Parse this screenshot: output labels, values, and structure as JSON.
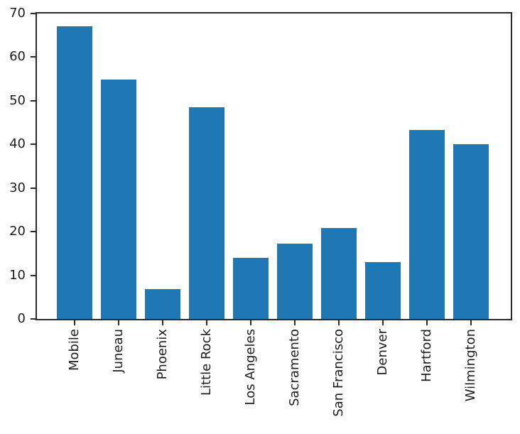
{
  "figure": {
    "background": "#ffffff"
  },
  "chart_data": {
    "type": "bar",
    "title": "",
    "xlabel": "",
    "ylabel": "",
    "categories": [
      "Mobile",
      "Juneau",
      "Phoenix",
      "Little Rock",
      "Los Angeles",
      "Sacramento",
      "San Francisco",
      "Denver",
      "Hartford",
      "Wilmington"
    ],
    "values": [
      67,
      54.8,
      6.9,
      48.5,
      14,
      17.2,
      20.8,
      13,
      43.3,
      40.1
    ],
    "ylim": [
      0,
      70
    ],
    "yticks": [
      0,
      10,
      20,
      30,
      40,
      50,
      60,
      70
    ],
    "bar_color": "#1f77b4",
    "axis_color": "#2b2b2b",
    "tick_label_color": "#1c1c1c",
    "grid": false,
    "legend": "none",
    "x_tick_label_rotation": "vertical"
  }
}
